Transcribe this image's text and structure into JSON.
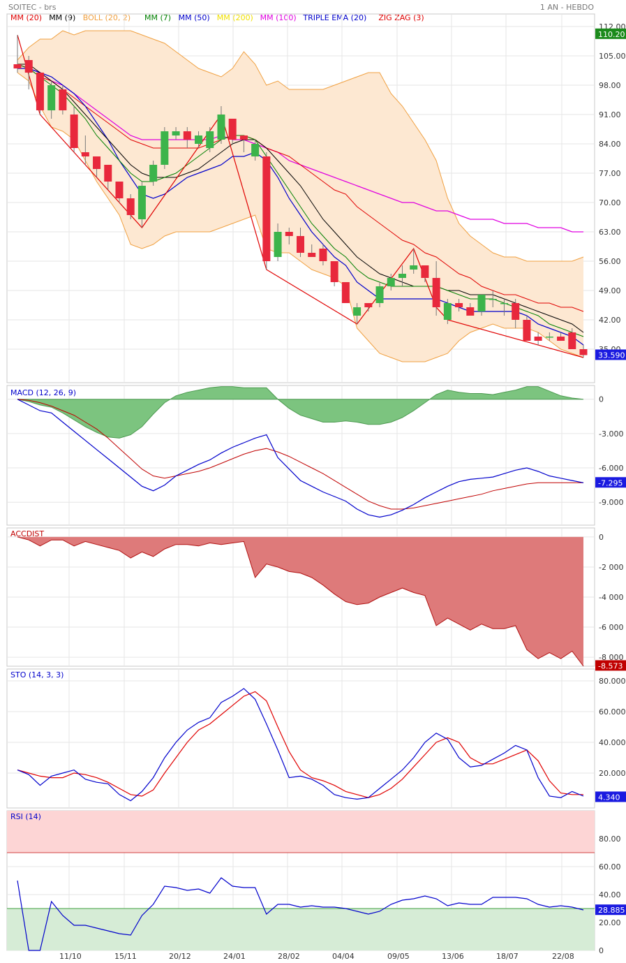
{
  "header": {
    "symbol": "SOITEC - brs",
    "period": "1 AN - HEBDO"
  },
  "legend": [
    {
      "label": "MM (20)",
      "color": "#e00000"
    },
    {
      "label": "MM (9)",
      "color": "#000000"
    },
    {
      "label": "BOLL (20, 2)",
      "color": "#f0a040"
    },
    {
      "label": "MM (7)",
      "color": "#008000"
    },
    {
      "label": "MM (50)",
      "color": "#0000cc"
    },
    {
      "label": "MM (200)",
      "color": "#f0e000"
    },
    {
      "label": "MM (100)",
      "color": "#e000e0"
    },
    {
      "label": "TRIPLE EMA (20)",
      "color": "#0000cc"
    },
    {
      "label": "ZIG ZAG (3)",
      "color": "#e00000"
    }
  ],
  "x_ticks": [
    "11/10",
    "15/11",
    "20/12",
    "24/01",
    "28/02",
    "04/04",
    "09/05",
    "13/06",
    "18/07",
    "22/08"
  ],
  "chart_data": [
    {
      "type": "candlestick",
      "panel": "price",
      "y_ticks": [
        "112.00",
        "105.00",
        "98.00",
        "91.00",
        "84.00",
        "77.00",
        "70.00",
        "63.00",
        "56.00",
        "49.00",
        "42.00",
        "35.00"
      ],
      "ylim": [
        27,
        115
      ],
      "last_price_tag": "33.590",
      "top_tag": "110.20",
      "candles": [
        [
          103,
          110,
          101,
          102
        ],
        [
          104,
          105,
          97,
          101
        ],
        [
          101,
          101,
          91,
          92
        ],
        [
          92,
          99,
          90,
          98
        ],
        [
          97,
          98,
          91,
          92
        ],
        [
          91,
          93,
          82,
          83
        ],
        [
          82,
          86,
          79,
          81
        ],
        [
          81,
          81,
          76,
          78
        ],
        [
          79,
          79,
          73,
          75
        ],
        [
          75,
          75,
          70,
          71
        ],
        [
          71,
          72,
          66,
          67
        ],
        [
          66,
          75,
          64,
          74
        ],
        [
          75,
          80,
          74,
          79
        ],
        [
          79,
          88,
          78,
          87
        ],
        [
          86,
          88,
          85,
          87
        ],
        [
          87,
          88,
          83,
          85
        ],
        [
          84,
          87,
          83,
          86
        ],
        [
          83,
          88,
          82,
          87
        ],
        [
          85,
          93,
          84,
          91
        ],
        [
          90,
          90,
          84,
          85
        ],
        [
          86,
          86,
          82,
          85
        ],
        [
          81,
          85,
          80,
          84
        ],
        [
          81,
          82,
          54,
          56
        ],
        [
          57,
          65,
          56,
          63
        ],
        [
          63,
          64,
          60,
          62
        ],
        [
          62,
          64,
          57,
          58
        ],
        [
          58,
          60,
          57,
          57
        ],
        [
          59,
          60,
          55,
          56
        ],
        [
          56,
          56,
          50,
          51
        ],
        [
          51,
          51,
          46,
          46
        ],
        [
          43,
          46,
          41,
          45
        ],
        [
          46,
          46,
          44,
          45
        ],
        [
          46,
          51,
          45,
          50
        ],
        [
          50,
          53,
          49,
          52
        ],
        [
          52,
          55,
          50,
          53
        ],
        [
          54,
          59,
          53,
          55
        ],
        [
          55,
          55,
          51,
          52
        ],
        [
          52,
          56,
          43,
          45
        ],
        [
          42,
          47,
          41,
          46
        ],
        [
          46,
          47,
          44,
          45
        ],
        [
          45,
          46,
          43,
          43
        ],
        [
          44,
          48,
          43,
          48
        ],
        [
          47,
          49,
          45,
          47
        ],
        [
          46,
          47,
          43,
          46
        ],
        [
          46,
          47,
          40,
          42
        ],
        [
          42,
          43,
          37,
          37
        ],
        [
          38,
          39,
          36,
          37
        ],
        [
          38,
          39,
          37,
          38
        ],
        [
          38,
          39,
          37,
          37
        ],
        [
          39,
          40,
          35,
          35
        ],
        [
          35,
          36,
          33,
          33.59
        ]
      ],
      "boll_upper": [
        104,
        107,
        109,
        109,
        111,
        110,
        111,
        111,
        111,
        111,
        111,
        110,
        109,
        108,
        106,
        104,
        102,
        101,
        100,
        102,
        106,
        103,
        98,
        99,
        97,
        97,
        97,
        97,
        98,
        99,
        100,
        101,
        101,
        96,
        93,
        89,
        85,
        80,
        71,
        65,
        62,
        60,
        58,
        57,
        57,
        56,
        56,
        56,
        56,
        56,
        57
      ],
      "boll_lower": [
        101,
        99,
        93,
        88,
        87,
        85,
        80,
        75,
        71,
        67,
        60,
        59,
        60,
        62,
        63,
        63,
        63,
        63,
        64,
        65,
        66,
        67,
        59,
        58,
        58,
        56,
        54,
        53,
        52,
        50,
        40,
        37,
        34,
        33,
        32,
        32,
        32,
        33,
        34,
        37,
        39,
        40,
        41,
        40,
        40,
        40,
        39,
        37,
        35,
        34,
        33
      ],
      "mm20": [
        103,
        102,
        100,
        99,
        97,
        95,
        93,
        91,
        89,
        87,
        85,
        84,
        83,
        83,
        83,
        83,
        83,
        84,
        85,
        86,
        86,
        85,
        83,
        82,
        81,
        79,
        77,
        75,
        73,
        72,
        69,
        67,
        65,
        63,
        61,
        60,
        58,
        57,
        55,
        53,
        52,
        50,
        49,
        48,
        48,
        47,
        46,
        46,
        45,
        45,
        44
      ],
      "mm9": [
        103,
        103,
        101,
        99,
        97,
        94,
        91,
        88,
        85,
        82,
        79,
        77,
        76,
        76,
        76,
        77,
        78,
        80,
        82,
        84,
        85,
        85,
        83,
        80,
        77,
        74,
        70,
        66,
        63,
        60,
        57,
        55,
        53,
        52,
        51,
        50,
        50,
        50,
        49,
        49,
        48,
        48,
        48,
        47,
        46,
        45,
        44,
        43,
        42,
        41,
        39
      ],
      "mm7": [
        103,
        102,
        100,
        98,
        96,
        93,
        90,
        86,
        83,
        80,
        77,
        75,
        75,
        76,
        77,
        79,
        81,
        83,
        85,
        86,
        86,
        85,
        81,
        77,
        73,
        69,
        65,
        62,
        59,
        57,
        54,
        52,
        51,
        50,
        50,
        50,
        50,
        50,
        49,
        48,
        47,
        47,
        47,
        46,
        45,
        44,
        43,
        41,
        40,
        39,
        38
      ],
      "mm50": [
        102,
        102,
        101,
        100,
        98,
        96,
        93,
        89,
        85,
        80,
        76,
        72,
        71,
        72,
        74,
        76,
        77,
        78,
        79,
        81,
        81,
        82,
        80,
        76,
        71,
        67,
        63,
        60,
        57,
        55,
        51,
        49,
        47,
        47,
        47,
        47,
        47,
        47,
        46,
        45,
        44,
        44,
        44,
        44,
        44,
        43,
        41,
        40,
        39,
        38,
        36
      ],
      "mm100": [
        103,
        102,
        101,
        99,
        98,
        96,
        94,
        92,
        90,
        88,
        86,
        85,
        85,
        85,
        85,
        85,
        85,
        85,
        86,
        85,
        85,
        84,
        83,
        82,
        80,
        79,
        78,
        77,
        76,
        75,
        74,
        73,
        72,
        71,
        70,
        70,
        69,
        68,
        68,
        67,
        66,
        66,
        66,
        65,
        65,
        65,
        64,
        64,
        64,
        63,
        63
      ],
      "zigzag": [
        [
          0,
          110
        ],
        [
          2,
          91
        ],
        [
          11,
          64
        ],
        [
          18,
          91
        ],
        [
          22,
          54
        ],
        [
          30,
          41
        ],
        [
          35,
          59
        ],
        [
          37,
          45
        ],
        [
          38,
          42
        ],
        [
          50,
          33
        ]
      ]
    },
    {
      "type": "line",
      "panel": "MACD",
      "title": "MACD (12, 26, 9)",
      "y_ticks": [
        "0",
        "-3.000",
        "-6.000",
        "-9.000"
      ],
      "ylim": [
        -11,
        1.2
      ],
      "last_tag": "-7.295",
      "macd": [
        0,
        -0.5,
        -1,
        -1.2,
        -2,
        -2.8,
        -3.6,
        -4.4,
        -5.2,
        -6,
        -6.8,
        -7.6,
        -8,
        -7.5,
        -6.7,
        -6.2,
        -5.7,
        -5.3,
        -4.7,
        -4.2,
        -3.8,
        -3.4,
        -3.1,
        -5.1,
        -6.1,
        -7.1,
        -7.6,
        -8.1,
        -8.5,
        -8.9,
        -9.6,
        -10.1,
        -10.3,
        -10.1,
        -9.7,
        -9.2,
        -8.6,
        -8.1,
        -7.6,
        -7.2,
        -7.0,
        -6.9,
        -6.8,
        -6.5,
        -6.2,
        -6.0,
        -6.3,
        -6.7,
        -6.9,
        -7.1,
        -7.3
      ],
      "signal": [
        0,
        -0.1,
        -0.3,
        -0.6,
        -1,
        -1.4,
        -2,
        -2.6,
        -3.4,
        -4.3,
        -5.2,
        -6.1,
        -6.7,
        -6.9,
        -6.7,
        -6.5,
        -6.3,
        -6.0,
        -5.6,
        -5.2,
        -4.8,
        -4.5,
        -4.3,
        -4.6,
        -5.0,
        -5.5,
        -6.0,
        -6.5,
        -7.1,
        -7.7,
        -8.3,
        -8.9,
        -9.3,
        -9.6,
        -9.6,
        -9.5,
        -9.3,
        -9.1,
        -8.9,
        -8.7,
        -8.5,
        -8.3,
        -8.0,
        -7.8,
        -7.6,
        -7.4,
        -7.3,
        -7.3,
        -7.3,
        -7.3,
        -7.3
      ],
      "hist": [
        0,
        -0.2,
        -0.5,
        -0.7,
        -1.2,
        -1.8,
        -2.4,
        -2.9,
        -3.3,
        -3.4,
        -3.1,
        -2.4,
        -1.3,
        -0.3,
        0.3,
        0.6,
        0.8,
        1.0,
        1.1,
        1.1,
        1.0,
        1.0,
        1.0,
        0,
        -0.8,
        -1.4,
        -1.7,
        -2.0,
        -2.0,
        -1.9,
        -2.0,
        -2.2,
        -2.2,
        -2.0,
        -1.6,
        -1.0,
        -0.3,
        0.4,
        0.8,
        0.6,
        0.5,
        0.5,
        0.4,
        0.6,
        0.8,
        1.1,
        1.1,
        0.7,
        0.3,
        0.1,
        0
      ]
    },
    {
      "type": "area",
      "panel": "ACCDIST",
      "title": "ACCDIST",
      "y_ticks": [
        "0",
        "-2 000",
        "-4 000",
        "-6 000",
        "-8 000"
      ],
      "ylim": [
        -8.6,
        0.6
      ],
      "last_tag": "-8.573",
      "values": [
        0,
        -0.2,
        -0.6,
        -0.2,
        -0.2,
        -0.6,
        -0.3,
        -0.5,
        -0.7,
        -0.9,
        -1.4,
        -1.0,
        -1.3,
        -0.8,
        -0.5,
        -0.5,
        -0.6,
        -0.4,
        -0.5,
        -0.4,
        -0.3,
        -2.7,
        -1.8,
        -2.0,
        -2.3,
        -2.4,
        -2.7,
        -3.2,
        -3.8,
        -4.3,
        -4.5,
        -4.4,
        -4.0,
        -3.7,
        -3.4,
        -3.7,
        -3.9,
        -5.9,
        -5.4,
        -5.8,
        -6.2,
        -5.8,
        -6.1,
        -6.1,
        -5.9,
        -7.5,
        -8.1,
        -7.7,
        -8.1,
        -7.6,
        -8.6
      ]
    },
    {
      "type": "line",
      "panel": "STO",
      "title": "STO (14, 3, 3)",
      "y_ticks": [
        "80.000",
        "60.000",
        "40.000",
        "20.000"
      ],
      "ylim": [
        0,
        85
      ],
      "last_tag": "4.340",
      "k": [
        22,
        19,
        12,
        18,
        20,
        22,
        16,
        14,
        13,
        6,
        2,
        8,
        17,
        30,
        40,
        48,
        53,
        56,
        66,
        70,
        75,
        68,
        52,
        35,
        17,
        18,
        16,
        12,
        6,
        4,
        3,
        4,
        10,
        16,
        22,
        30,
        40,
        46,
        42,
        30,
        24,
        25,
        29,
        33,
        38,
        35,
        17,
        5,
        4,
        8,
        5
      ],
      "d": [
        22,
        20,
        18,
        17,
        17,
        20,
        19,
        17,
        14,
        10,
        6,
        5,
        9,
        20,
        30,
        40,
        48,
        52,
        58,
        64,
        70,
        73,
        67,
        50,
        34,
        22,
        17,
        15,
        12,
        8,
        6,
        4,
        6,
        10,
        16,
        24,
        32,
        40,
        43,
        40,
        30,
        26,
        26,
        29,
        32,
        35,
        28,
        15,
        7,
        6,
        6
      ]
    },
    {
      "type": "line",
      "panel": "RSI",
      "title": "RSI (14)",
      "y_ticks": [
        "80.00",
        "60.00",
        "40.00",
        "20.00",
        "0"
      ],
      "ylim": [
        0,
        100
      ],
      "bands": [
        30,
        70
      ],
      "last_tag": "28.885",
      "values": [
        50,
        0,
        0,
        35,
        25,
        18,
        18,
        16,
        14,
        12,
        11,
        25,
        33,
        46,
        45,
        43,
        44,
        41,
        52,
        46,
        45,
        45,
        26,
        33,
        33,
        31,
        32,
        31,
        31,
        30,
        28,
        26,
        28,
        33,
        36,
        37,
        39,
        37,
        32,
        34,
        33,
        33,
        38,
        38,
        38,
        37,
        33,
        31,
        32,
        31,
        29
      ]
    }
  ]
}
